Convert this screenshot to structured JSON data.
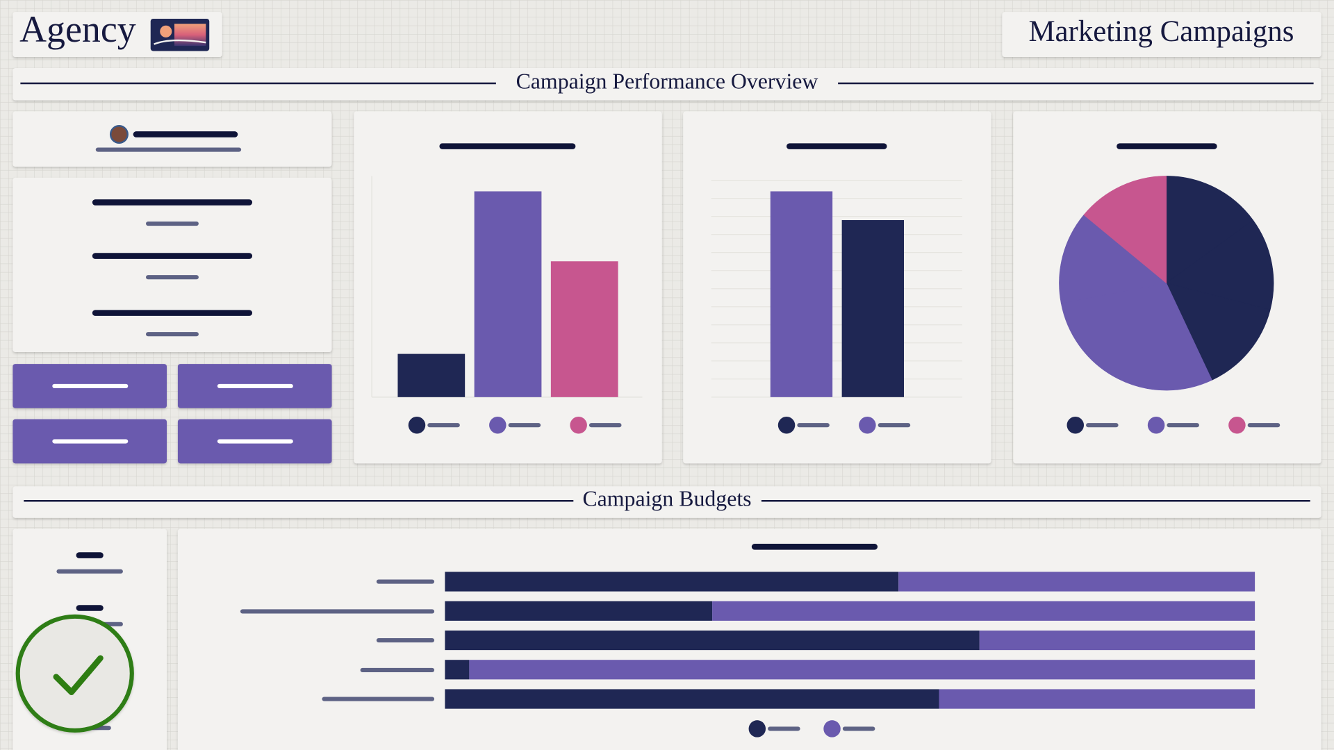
{
  "header": {
    "brand": "Agency",
    "title": "Marketing Campaigns"
  },
  "overview": {
    "title": "Campaign Performance Overview",
    "charts": [
      {
        "type": "bar",
        "values": [
          21,
          100,
          66
        ],
        "colors": [
          "#1f2754",
          "#6a5aae",
          "#c7568f"
        ],
        "legend_colors": [
          "#1f2754",
          "#6a5aae",
          "#c7568f"
        ]
      },
      {
        "type": "bar",
        "values": [
          100,
          86
        ],
        "colors": [
          "#6a5aae",
          "#1f2754"
        ],
        "legend_colors": [
          "#1f2754",
          "#6a5aae"
        ],
        "grid": true
      },
      {
        "type": "pie",
        "values": [
          15,
          14,
          14,
          29,
          14,
          14
        ],
        "colors": [
          "#1f2754",
          "#1f2754",
          "#1f2754",
          "#6a5aae",
          "#6a5aae",
          "#c7568f"
        ],
        "legend_colors": [
          "#1f2754",
          "#6a5aae",
          "#c7568f"
        ]
      }
    ]
  },
  "budgets": {
    "title": "Campaign Budgets",
    "chart": {
      "type": "stacked-bar",
      "series": [
        {
          "color": "#1f2754",
          "values": [
            56,
            33,
            66,
            3,
            61
          ]
        },
        {
          "color": "#6a5aae",
          "values": [
            44,
            67,
            34,
            97,
            39
          ]
        }
      ]
    }
  }
}
